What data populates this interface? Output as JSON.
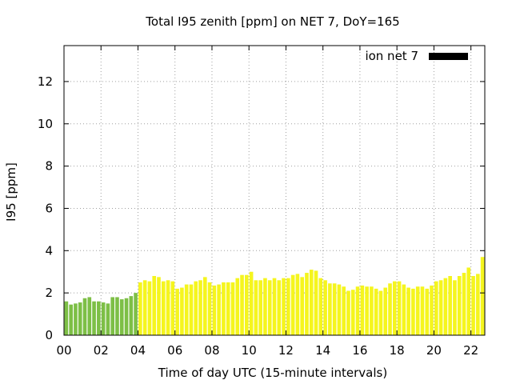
{
  "chart_data": {
    "type": "bar",
    "title": "Total I95 zenith [ppm] on NET 7, DoY=165",
    "xlabel": "Time of day UTC (15-minute intervals)",
    "ylabel": "I95 [ppm]",
    "xlim": [
      0,
      22.75
    ],
    "ylim": [
      0,
      13.7
    ],
    "x_ticks": [
      0,
      2,
      4,
      6,
      8,
      10,
      12,
      14,
      16,
      18,
      20,
      22
    ],
    "x_tick_labels": [
      "00",
      "02",
      "04",
      "06",
      "08",
      "10",
      "12",
      "14",
      "16",
      "18",
      "20",
      "22"
    ],
    "y_ticks": [
      0,
      2,
      4,
      6,
      8,
      10,
      12
    ],
    "y_tick_labels": [
      "0",
      "2",
      "4",
      "6",
      "8",
      "10",
      "12"
    ],
    "grid": true,
    "legend": {
      "position": "top-right",
      "entries": [
        {
          "label": "ion net 7",
          "color": "#000000"
        }
      ]
    },
    "bar_interval_hours": 0.25,
    "green_until_hour": 4.0,
    "colors": {
      "green": "#7dbf46",
      "yellow": "#f5f51e"
    },
    "series": [
      {
        "x": [
          0,
          0.25,
          0.5,
          0.75,
          1,
          1.25,
          1.5,
          1.75,
          2,
          2.25,
          2.5,
          2.75,
          3,
          3.25,
          3.5,
          3.75,
          4,
          4.25,
          4.5,
          4.75,
          5,
          5.25,
          5.5,
          5.75,
          6,
          6.25,
          6.5,
          6.75,
          7,
          7.25,
          7.5,
          7.75,
          8,
          8.25,
          8.5,
          8.75,
          9,
          9.25,
          9.5,
          9.75,
          10,
          10.25,
          10.5,
          10.75,
          11,
          11.25,
          11.5,
          11.75,
          12,
          12.25,
          12.5,
          12.75,
          13,
          13.25,
          13.5,
          13.75,
          14,
          14.25,
          14.5,
          14.75,
          15,
          15.25,
          15.5,
          15.75,
          16,
          16.25,
          16.5,
          16.75,
          17,
          17.25,
          17.5,
          17.75,
          18,
          18.25,
          18.5,
          18.75,
          19,
          19.25,
          19.5,
          19.75,
          20,
          20.25,
          20.5,
          20.75,
          21,
          21.25,
          21.5,
          21.75,
          22,
          22.25,
          22.5,
          22.75
        ],
        "values": [
          1.6,
          1.45,
          1.5,
          1.55,
          1.75,
          1.8,
          1.6,
          1.6,
          1.55,
          1.5,
          1.8,
          1.8,
          1.7,
          1.75,
          1.85,
          2.0,
          2.5,
          2.6,
          2.55,
          2.8,
          2.75,
          2.55,
          2.6,
          2.55,
          2.2,
          2.25,
          2.4,
          2.4,
          2.55,
          2.6,
          2.75,
          2.5,
          2.35,
          2.4,
          2.5,
          2.5,
          2.5,
          2.7,
          2.85,
          2.85,
          3.0,
          2.6,
          2.6,
          2.7,
          2.6,
          2.7,
          2.6,
          2.7,
          2.7,
          2.85,
          2.9,
          2.75,
          2.95,
          3.1,
          3.05,
          2.7,
          2.6,
          2.45,
          2.45,
          2.4,
          2.3,
          2.1,
          2.15,
          2.3,
          2.35,
          2.3,
          2.3,
          2.2,
          2.1,
          2.25,
          2.45,
          2.55,
          2.55,
          2.4,
          2.25,
          2.2,
          2.3,
          2.3,
          2.2,
          2.35,
          2.55,
          2.6,
          2.7,
          2.8,
          2.6,
          2.8,
          2.95,
          3.2,
          2.8,
          2.9,
          3.7,
          3.75
        ]
      }
    ]
  }
}
